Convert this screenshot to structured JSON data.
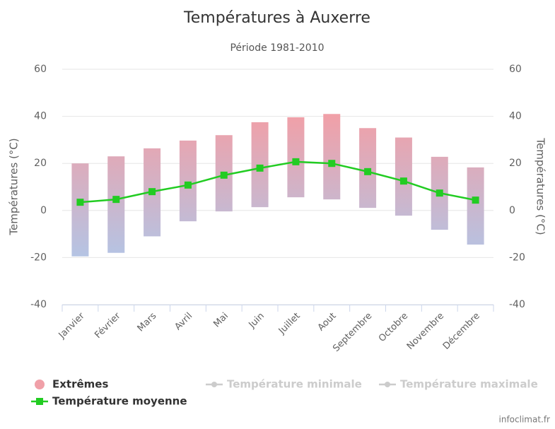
{
  "chart_data": {
    "type": "range-bar-line",
    "title": "Températures à Auxerre",
    "subtitle": "Période 1981-2010",
    "y_label": "Températures (°C)",
    "y2_label": "Températures (°C)",
    "credit": "infoclimat.fr",
    "categories": [
      "Janvier",
      "Février",
      "Mars",
      "Avril",
      "Mai",
      "Juin",
      "Juillet",
      "Aout",
      "Septembre",
      "Octobre",
      "Novembre",
      "Décembre"
    ],
    "ylim": [
      -40,
      60
    ],
    "yticks": [
      -40,
      -20,
      0,
      20,
      40,
      60
    ],
    "y2lim": [
      -40,
      60
    ],
    "y2ticks": [
      -40,
      -20,
      0,
      20,
      40,
      60
    ],
    "grid": true,
    "series": [
      {
        "name": "Extrêmes",
        "color": "#f0a0a8",
        "color_low": "#b4c4e4",
        "low": [
          -19.5,
          -18,
          -11,
          -4.6,
          -0.4,
          1.4,
          5.6,
          4.7,
          1.1,
          -2.2,
          -8.2,
          -14.5
        ],
        "high": [
          20,
          23,
          26.4,
          29.7,
          32,
          37.5,
          39.6,
          41,
          35,
          31,
          22.8,
          18.3
        ]
      },
      {
        "name": "Température moyenne",
        "color": "#22cc22",
        "values": [
          3.5,
          4.7,
          8,
          10.8,
          15,
          18,
          20.7,
          20,
          16.5,
          12.5,
          7.4,
          4.4
        ]
      },
      {
        "name": "Température minimale",
        "color": "#cccccc",
        "visible": false
      },
      {
        "name": "Température maximale",
        "color": "#cccccc",
        "visible": false
      }
    ]
  }
}
